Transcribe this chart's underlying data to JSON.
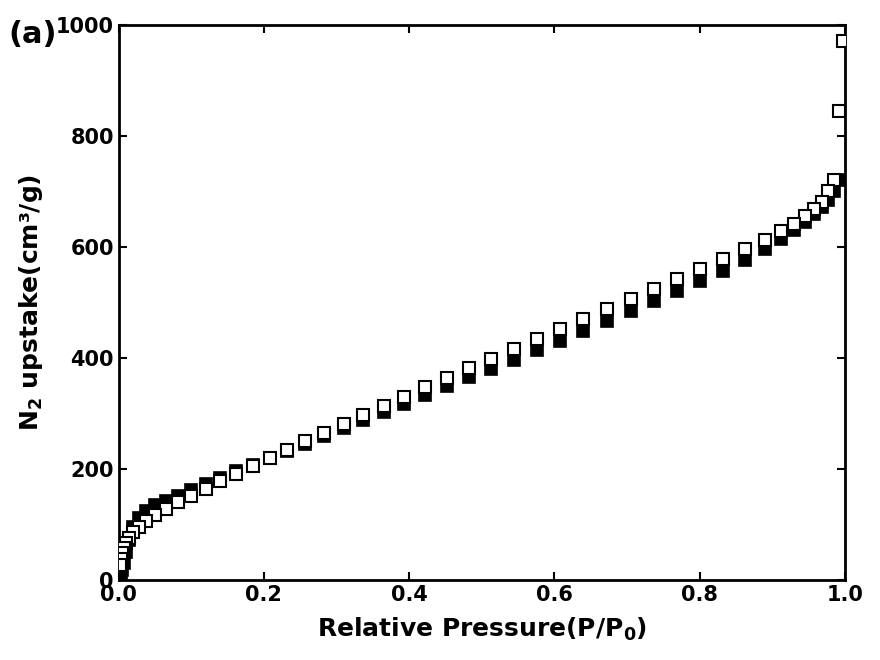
{
  "xlabel": "Relative Pressure（P/P₀）",
  "ylabel": "N₂ upstake(cm³/g)",
  "xlim": [
    0.0,
    1.0
  ],
  "ylim": [
    0,
    1000
  ],
  "xticks": [
    0.0,
    0.2,
    0.4,
    0.6,
    0.8,
    1.0
  ],
  "yticks": [
    0,
    200,
    400,
    600,
    800,
    1000
  ],
  "panel_label": "(a)",
  "adsorption_x": [
    0.001,
    0.002,
    0.003,
    0.005,
    0.007,
    0.01,
    0.014,
    0.02,
    0.028,
    0.038,
    0.05,
    0.065,
    0.082,
    0.1,
    0.12,
    0.14,
    0.162,
    0.185,
    0.208,
    0.232,
    0.257,
    0.283,
    0.31,
    0.337,
    0.365,
    0.393,
    0.422,
    0.452,
    0.482,
    0.513,
    0.544,
    0.576,
    0.608,
    0.64,
    0.672,
    0.705,
    0.737,
    0.769,
    0.801,
    0.832,
    0.862,
    0.89,
    0.912,
    0.93,
    0.945,
    0.958,
    0.968,
    0.977,
    0.985,
    0.992,
    0.997
  ],
  "adsorption_y": [
    2,
    5,
    10,
    18,
    30,
    50,
    72,
    95,
    112,
    125,
    135,
    143,
    152,
    162,
    173,
    184,
    196,
    208,
    220,
    233,
    246,
    260,
    274,
    288,
    303,
    318,
    333,
    349,
    365,
    381,
    397,
    414,
    431,
    448,
    466,
    484,
    502,
    520,
    538,
    557,
    576,
    596,
    614,
    630,
    645,
    660,
    672,
    685,
    700,
    720,
    970
  ],
  "desorption_x": [
    0.997,
    0.992,
    0.985,
    0.977,
    0.968,
    0.958,
    0.945,
    0.93,
    0.912,
    0.89,
    0.862,
    0.832,
    0.801,
    0.769,
    0.737,
    0.705,
    0.672,
    0.64,
    0.608,
    0.576,
    0.544,
    0.513,
    0.482,
    0.452,
    0.422,
    0.393,
    0.365,
    0.337,
    0.31,
    0.283,
    0.257,
    0.232,
    0.208,
    0.185,
    0.162,
    0.14,
    0.12,
    0.1,
    0.082,
    0.065,
    0.05,
    0.038,
    0.028,
    0.02,
    0.014,
    0.01,
    0.007,
    0.005,
    0.003,
    0.002
  ],
  "desorption_y": [
    970,
    845,
    720,
    700,
    680,
    668,
    655,
    642,
    628,
    613,
    596,
    578,
    560,
    542,
    524,
    506,
    488,
    471,
    453,
    435,
    417,
    399,
    382,
    364,
    347,
    330,
    313,
    297,
    281,
    265,
    250,
    235,
    220,
    205,
    192,
    178,
    165,
    152,
    140,
    128,
    117,
    106,
    96,
    86,
    76,
    66,
    57,
    48,
    38,
    28
  ],
  "marker_size": 9,
  "background_color": "#ffffff",
  "axis_color": "#000000",
  "filled_color": "#000000",
  "open_color": "#ffffff",
  "open_edge_color": "#000000"
}
